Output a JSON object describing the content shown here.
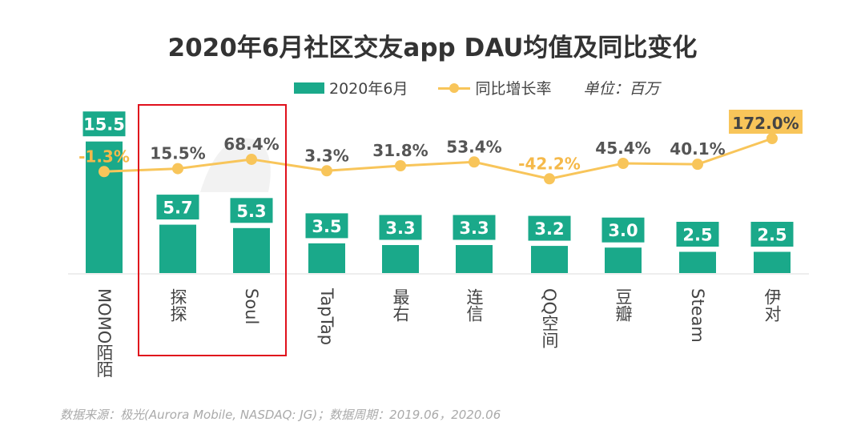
{
  "chart_data": {
    "type": "bar+line",
    "title": "2020年6月社区交友app DAU均值及同比变化",
    "unit_label": "单位：百万",
    "categories": [
      "MOMO陌陌",
      "探探",
      "Soul",
      "TapTap",
      "最右",
      "连信",
      "QQ空间",
      "豆瓣",
      "Steam",
      "伊对"
    ],
    "series": [
      {
        "name": "2020年6月",
        "type": "bar",
        "color": "#1aa98a",
        "values": [
          15.5,
          5.7,
          5.3,
          3.5,
          3.3,
          3.3,
          3.2,
          3.0,
          2.5,
          2.5
        ]
      },
      {
        "name": "同比增长率",
        "type": "line",
        "color": "#f8c55a",
        "values": [
          -1.3,
          15.5,
          68.4,
          3.3,
          31.8,
          53.4,
          -42.2,
          45.4,
          40.1,
          172.0
        ]
      }
    ],
    "legend": "top",
    "grid": false,
    "highlighted_categories": [
      "探探",
      "Soul"
    ],
    "highlight_color": "#e0101c",
    "watermark": "AURORA 极光",
    "source": "数据来源：极光(Aurora Mobile, NASDAQ: JG)；数据周期：2019.06，2020.06"
  }
}
